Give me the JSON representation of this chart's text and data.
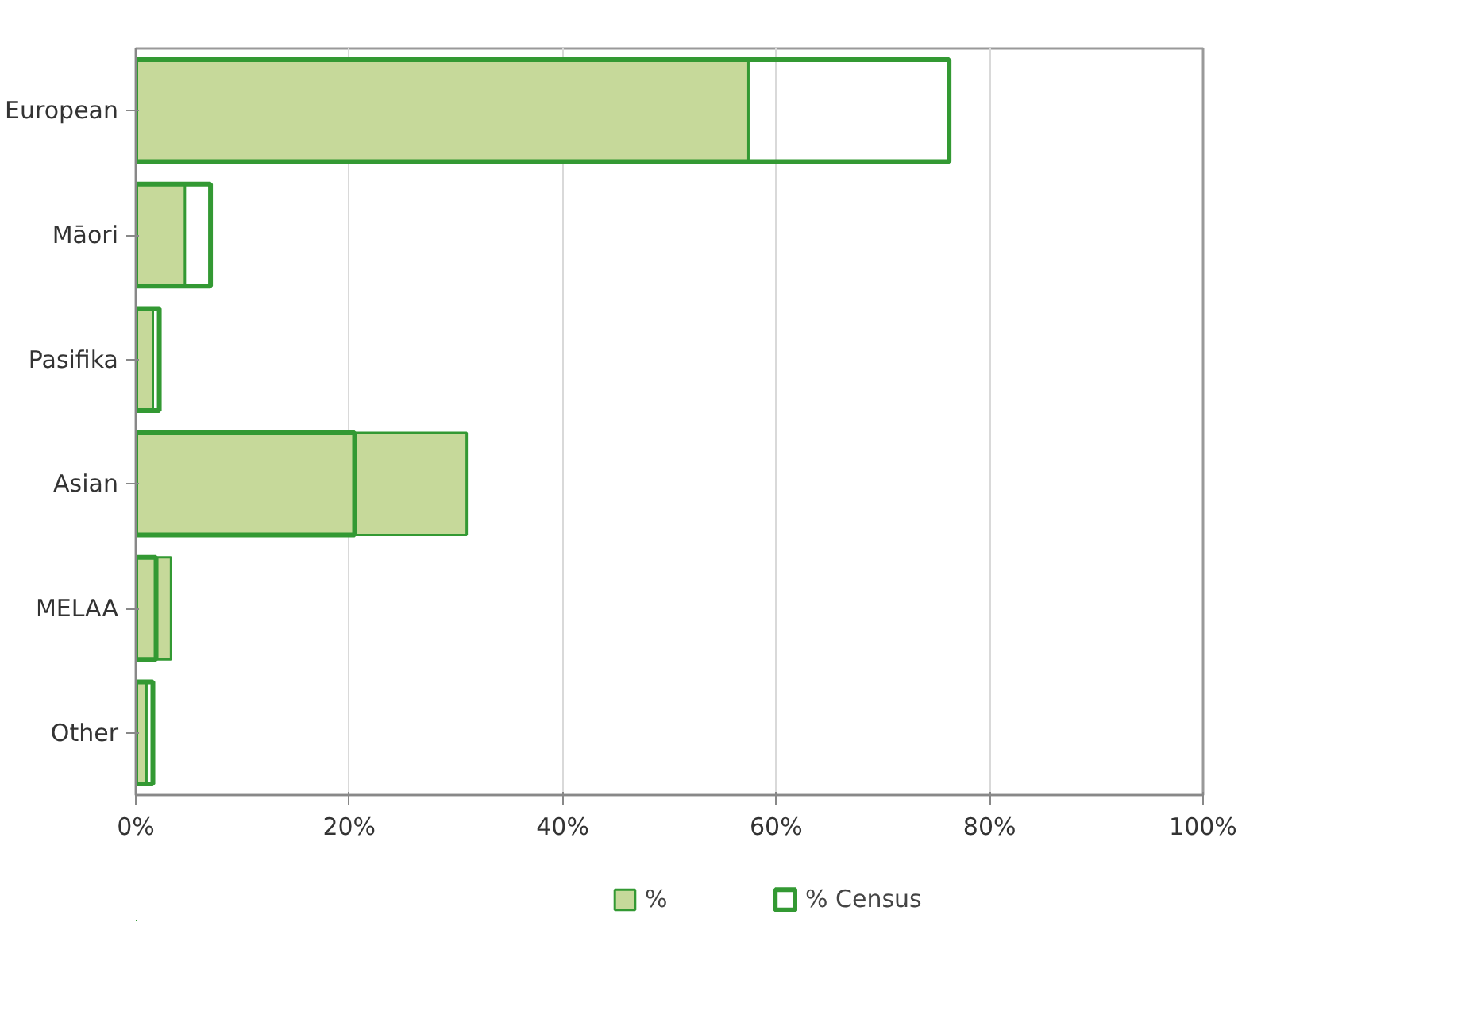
{
  "chart_data": {
    "type": "bar",
    "orientation": "horizontal",
    "categories": [
      "European",
      "Māori",
      "Pasifika",
      "Asian",
      "MELAA",
      "Other"
    ],
    "series": [
      {
        "name": "%",
        "color": "#c6d99a",
        "values": [
          57.4,
          4.6,
          1.6,
          31.0,
          3.3,
          1.0
        ]
      },
      {
        "name": "% Census",
        "color": "#339933",
        "values": [
          76.2,
          7.0,
          2.2,
          20.5,
          1.9,
          1.6
        ]
      }
    ],
    "xlim": [
      0,
      100
    ],
    "xticks": [
      {
        "value": 0,
        "label": "0%"
      },
      {
        "value": 20,
        "label": "20%"
      },
      {
        "value": 40,
        "label": "40%"
      },
      {
        "value": 60,
        "label": "60%"
      },
      {
        "value": 80,
        "label": "80%"
      },
      {
        "value": 100,
        "label": "100%"
      }
    ],
    "grid": "x",
    "legend": "bottom"
  }
}
